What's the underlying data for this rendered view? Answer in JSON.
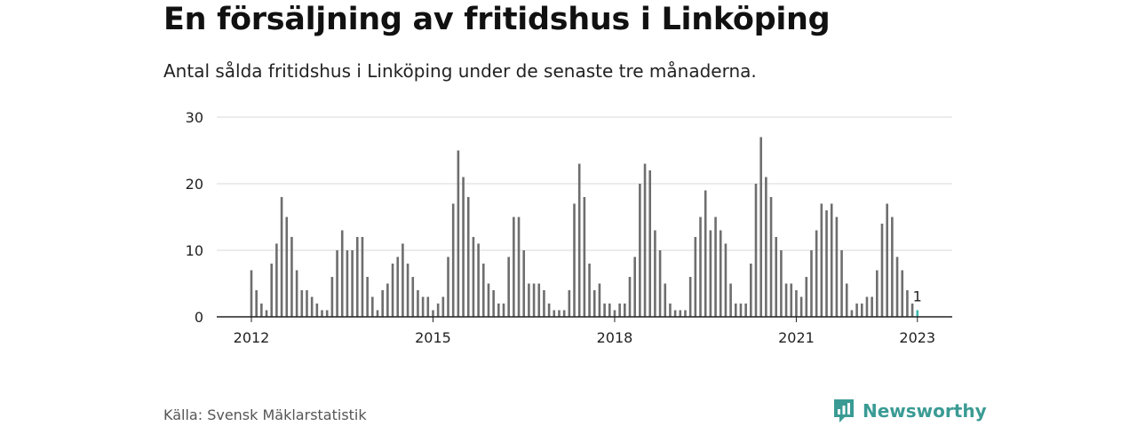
{
  "title": "En försäljning av fritidshus i Linköping",
  "subtitle": "Antal sålda fritidshus i Linköping under de senaste tre månaderna.",
  "source": "Källa: Svensk Mäklarstatistik",
  "brand": "Newsworthy",
  "colors": {
    "bar": "#6e6e6e",
    "highlight": "#3fb8ae",
    "grid": "#d9d9d9",
    "axis": "#222222",
    "brand": "#3a9b94"
  },
  "chart_data": {
    "type": "bar",
    "x_start": "2012-01",
    "frequency": "monthly",
    "x_ticks": [
      "2012",
      "2015",
      "2018",
      "2021",
      "2023"
    ],
    "y_ticks": [
      "0",
      "10",
      "20",
      "30"
    ],
    "ylim": [
      0,
      30
    ],
    "grid": true,
    "values": [
      7,
      4,
      2,
      1,
      8,
      11,
      18,
      15,
      12,
      7,
      4,
      4,
      3,
      2,
      1,
      1,
      6,
      10,
      13,
      10,
      10,
      12,
      12,
      6,
      3,
      1,
      4,
      5,
      8,
      9,
      11,
      8,
      6,
      4,
      3,
      3,
      1,
      2,
      3,
      9,
      17,
      25,
      21,
      18,
      12,
      11,
      8,
      5,
      4,
      2,
      2,
      9,
      15,
      15,
      10,
      5,
      5,
      5,
      4,
      2,
      1,
      1,
      1,
      4,
      17,
      23,
      18,
      8,
      4,
      5,
      2,
      2,
      1,
      2,
      2,
      6,
      9,
      20,
      23,
      22,
      13,
      10,
      5,
      2,
      1,
      1,
      1,
      6,
      12,
      15,
      19,
      13,
      15,
      13,
      11,
      5,
      2,
      2,
      2,
      8,
      20,
      27,
      21,
      18,
      12,
      10,
      5,
      5,
      4,
      3,
      6,
      10,
      13,
      17,
      16,
      17,
      15,
      10,
      5,
      1,
      2,
      2,
      3,
      3,
      7,
      14,
      17,
      15,
      9,
      7,
      4,
      2,
      1
    ],
    "highlight_value_label": "1"
  }
}
